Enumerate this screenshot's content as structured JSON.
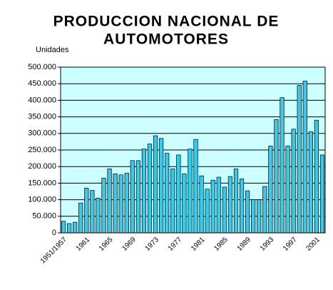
{
  "chart_data": {
    "type": "bar",
    "title": [
      "PRODUCCION NACIONAL DE",
      "AUTOMOTORES"
    ],
    "y_label": "Unidades",
    "categories": [
      "1951/1957",
      null,
      null,
      null,
      "1961",
      null,
      null,
      null,
      "1965",
      null,
      null,
      null,
      "1969",
      null,
      null,
      null,
      "1973",
      null,
      null,
      null,
      "1977",
      null,
      null,
      null,
      "1981",
      null,
      null,
      null,
      "1985",
      null,
      null,
      null,
      "1989",
      null,
      null,
      null,
      "1993",
      null,
      null,
      null,
      "1997",
      null,
      null,
      null,
      "2001",
      null
    ],
    "values": [
      35000,
      28000,
      32000,
      90000,
      135000,
      128000,
      105000,
      165000,
      193000,
      178000,
      175000,
      180000,
      218000,
      218000,
      253000,
      268000,
      293000,
      285000,
      240000,
      193000,
      235000,
      178000,
      253000,
      282000,
      172000,
      132000,
      159000,
      168000,
      138000,
      170000,
      193000,
      163000,
      127000,
      100000,
      100000,
      140000,
      262000,
      342000,
      408000,
      262000,
      313000,
      445000,
      458000,
      305000,
      340000,
      235000
    ],
    "color": "#33ccee",
    "plot_background": "#ccffff",
    "ylim": [
      0,
      500000
    ],
    "yticks": [
      0,
      {
        "value": 50000,
        "label": "50.000"
      },
      {
        "value": 100000,
        "label": "100.000"
      },
      {
        "value": 150000,
        "label": "150.000"
      },
      {
        "value": 200000,
        "label": "200.000"
      },
      {
        "value": 250000,
        "label": "250.000"
      },
      {
        "value": 300000,
        "label": "300.000"
      },
      {
        "value": 350000,
        "label": "350.000"
      },
      {
        "value": 400000,
        "label": "400.000"
      },
      {
        "value": 450000,
        "label": "450.000"
      },
      {
        "value": 500000,
        "label": "500.000"
      }
    ],
    "grid": true
  }
}
